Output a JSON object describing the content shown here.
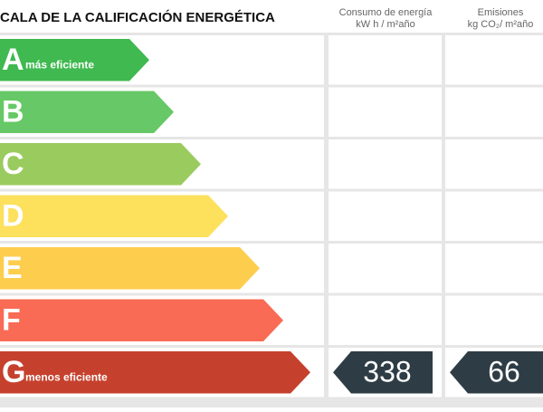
{
  "header": {
    "title": "CALA DE LA CALIFICACIÓN ENERGÉTICA",
    "consumption": {
      "line1": "Consumo de energía",
      "line2": "kW h / m²año"
    },
    "emissions": {
      "line1": "Emisiones",
      "line2": "kg CO₂/ m²año"
    }
  },
  "rows": [
    {
      "letter": "A",
      "label": "más eficiente",
      "color": "#3fb950"
    },
    {
      "letter": "B",
      "color": "#66c866"
    },
    {
      "letter": "C",
      "color": "#9acb5f"
    },
    {
      "letter": "D",
      "color": "#fde05c"
    },
    {
      "letter": "E",
      "color": "#fdcd4e"
    },
    {
      "letter": "F",
      "color": "#f96b55"
    },
    {
      "letter": "G",
      "label": "menos eficiente",
      "color": "#c6412d",
      "consumption": "338",
      "emissions": "66"
    }
  ]
}
